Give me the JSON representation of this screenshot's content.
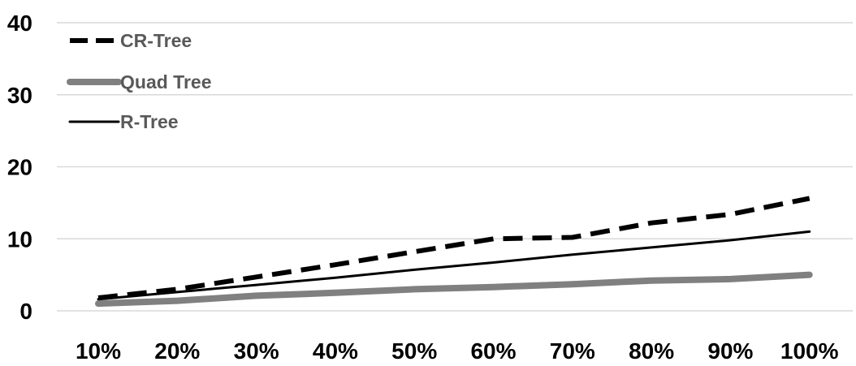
{
  "chart_data": {
    "type": "line",
    "title": "",
    "xlabel": "",
    "ylabel": "",
    "categories": [
      "10%",
      "20%",
      "30%",
      "40%",
      "50%",
      "60%",
      "70%",
      "80%",
      "90%",
      "100%"
    ],
    "ylim": [
      0,
      40
    ],
    "yticks": [
      0,
      10,
      20,
      30,
      40
    ],
    "grid": "horizontal",
    "legend_position": "top-left",
    "series": [
      {
        "name": "CR-Tree",
        "color": "#000000",
        "style": "dashed-thick",
        "values": [
          1.8,
          3.0,
          4.7,
          6.4,
          8.2,
          10.0,
          10.2,
          12.2,
          13.4,
          15.6
        ]
      },
      {
        "name": "Quad Tree",
        "color": "#808080",
        "style": "solid-thick",
        "values": [
          1.0,
          1.4,
          2.1,
          2.5,
          3.0,
          3.3,
          3.7,
          4.2,
          4.4,
          5.0
        ]
      },
      {
        "name": "R-Tree",
        "color": "#000000",
        "style": "solid-thin",
        "values": [
          1.6,
          2.6,
          3.6,
          4.6,
          5.7,
          6.7,
          7.8,
          8.8,
          9.8,
          11.0
        ]
      }
    ]
  }
}
